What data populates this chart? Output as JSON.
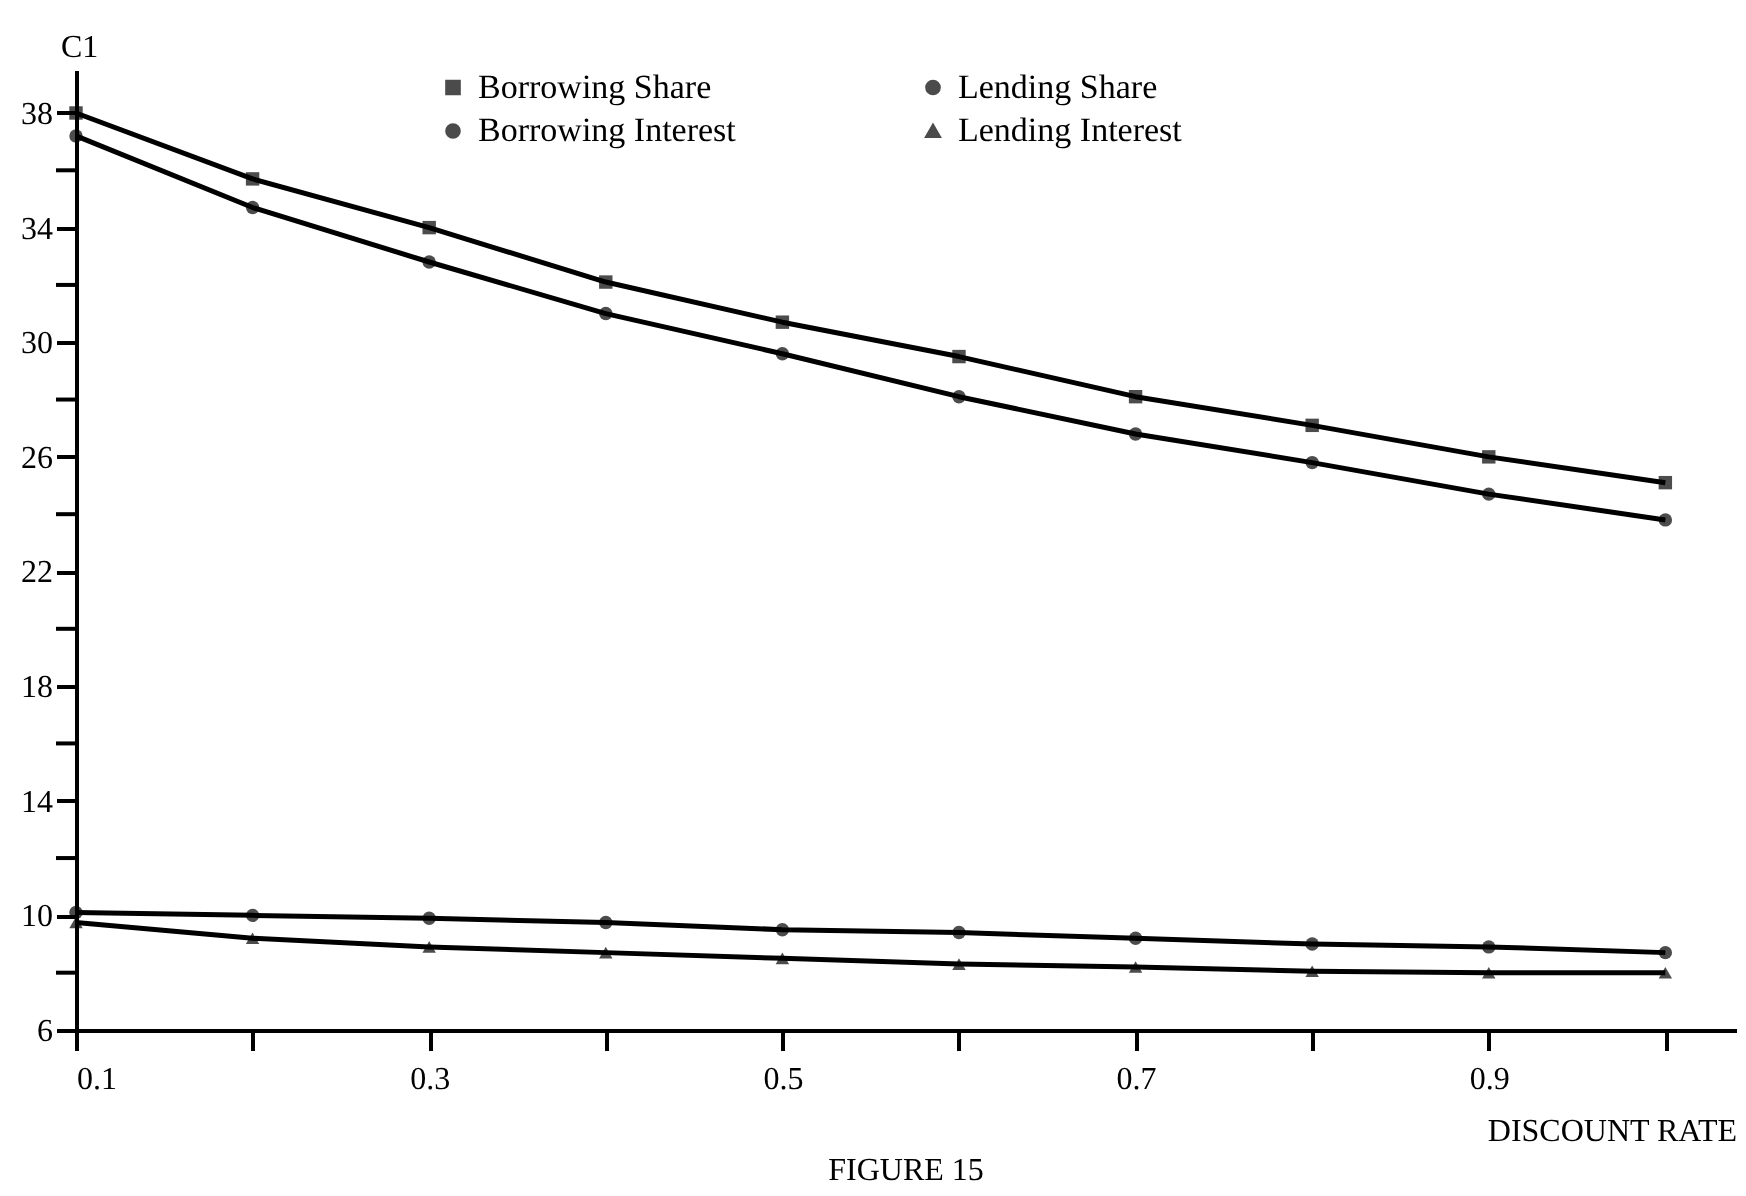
{
  "chart_data": {
    "type": "line",
    "xlabel": "DISCOUNT RATE",
    "ylabel": "C1",
    "x": [
      0.1,
      0.2,
      0.3,
      0.4,
      0.5,
      0.6,
      0.7,
      0.8,
      0.9,
      1.0
    ],
    "series": [
      {
        "name": "Borrowing Share",
        "color": "#000000",
        "marker": "square",
        "values": [
          38.0,
          35.7,
          34.0,
          32.1,
          30.7,
          29.5,
          28.1,
          27.1,
          26.0,
          25.1
        ]
      },
      {
        "name": "Lending Share",
        "color": "#000000",
        "marker": "circle",
        "values": [
          37.2,
          34.7,
          32.8,
          31.0,
          29.6,
          28.1,
          26.8,
          25.8,
          24.7,
          23.8
        ]
      },
      {
        "name": "Borrowing Interest",
        "color": "#000000",
        "marker": "circle",
        "values": [
          10.1,
          10.0,
          9.9,
          9.75,
          9.5,
          9.4,
          9.2,
          9.0,
          8.9,
          8.7
        ]
      },
      {
        "name": "Lending Interest",
        "color": "#000000",
        "marker": "triangle",
        "values": [
          9.75,
          9.2,
          8.9,
          8.7,
          8.5,
          8.3,
          8.2,
          8.05,
          8.0,
          8.0
        ]
      }
    ],
    "xlim": [
      0.1,
      1.04
    ],
    "ylim": [
      6,
      39.5
    ],
    "xticks": [
      0.1,
      {
        "value": 0.2,
        "label": null
      },
      0.3,
      {
        "value": 0.4,
        "label": null
      },
      0.5,
      {
        "value": 0.6,
        "label": null
      },
      0.7,
      {
        "value": 0.8,
        "label": null
      },
      0.9,
      {
        "value": 1.0,
        "label": null
      }
    ],
    "yticks": [
      6,
      {
        "value": 8,
        "label": null
      },
      10,
      {
        "value": 12,
        "label": null
      },
      14,
      {
        "value": 16,
        "label": null
      },
      18,
      {
        "value": 20,
        "label": null
      },
      22,
      {
        "value": 24,
        "label": null
      },
      26,
      {
        "value": 28,
        "label": null
      },
      30,
      {
        "value": 32,
        "label": null
      },
      34,
      {
        "value": 36,
        "label": null
      },
      38
    ],
    "grid": false,
    "legend": "top",
    "line_style": "solid",
    "annotations": [
      "FIGURE 15"
    ]
  }
}
